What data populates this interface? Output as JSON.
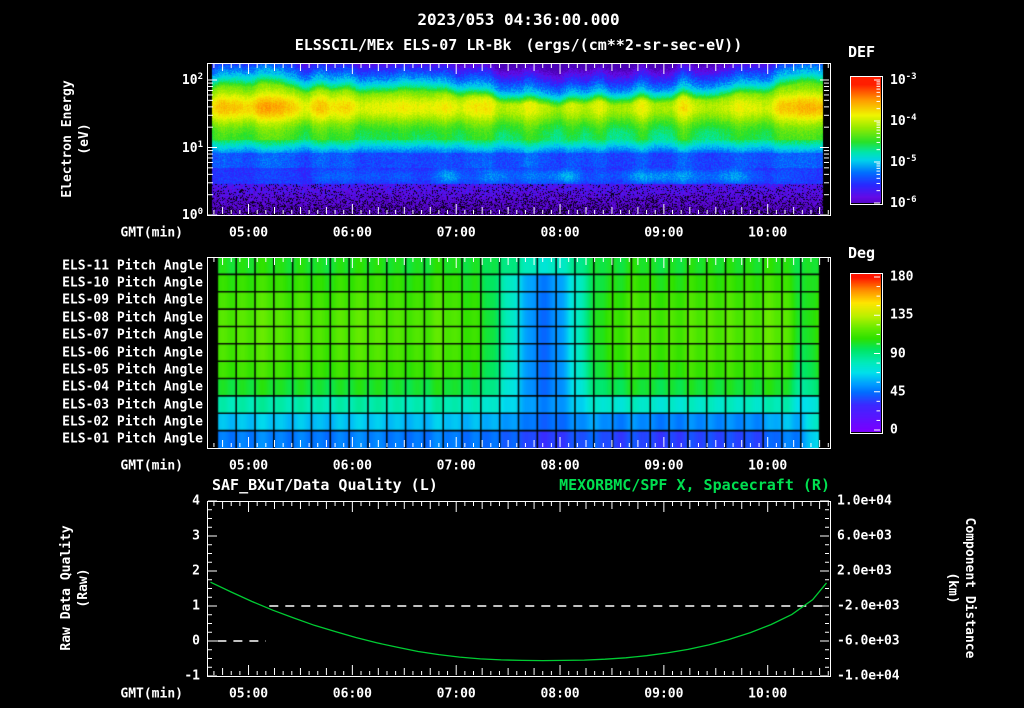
{
  "header": {
    "datetime": "2023/053 04:36:00.000",
    "title": "ELSSCIL/MEx ELS-07 LR-Bk",
    "units": "(ergs/(cm**2-sr-sec-eV))"
  },
  "colors": {
    "background": "#000000",
    "text": "#ffffff",
    "green_text": "#00e050",
    "curve_green": "#00cc33",
    "axis": "#ffffff"
  },
  "xaxis": {
    "label": "GMT(min)",
    "range_min": [
      276,
      636
    ],
    "major_ticks": [
      {
        "label": "05:00",
        "min": 300
      },
      {
        "label": "06:00",
        "min": 360
      },
      {
        "label": "07:00",
        "min": 420
      },
      {
        "label": "08:00",
        "min": 480
      },
      {
        "label": "09:00",
        "min": 540
      },
      {
        "label": "10:00",
        "min": 600
      }
    ]
  },
  "panel_energy": {
    "ylabel": [
      "Electron Energy",
      "(eV)"
    ],
    "yticks_exp": [
      {
        "base": "10",
        "exp": "2",
        "logE": 2
      },
      {
        "base": "10",
        "exp": "1",
        "logE": 1
      },
      {
        "base": "10",
        "exp": "0",
        "logE": 0
      }
    ],
    "colorbar": {
      "title": "DEF",
      "ticks": [
        {
          "base": "10",
          "exp": "-3"
        },
        {
          "base": "10",
          "exp": "-4"
        },
        {
          "base": "10",
          "exp": "-5"
        },
        {
          "base": "10",
          "exp": "-6"
        }
      ]
    }
  },
  "panel_pitch": {
    "colorbar": {
      "title": "Deg",
      "ticks": [
        "180",
        "135",
        "90",
        "45",
        "0"
      ]
    }
  },
  "panel_line": {
    "title_left": "SAF_BXuT/Data Quality (L)",
    "title_right": "MEXORBMC/SPF X, Spacecraft (R)",
    "ylabel_left": [
      "Raw Data Quality",
      "(Raw)"
    ],
    "ylabel_right": [
      "Component Distance",
      "(km)"
    ],
    "yticks_left": [
      "4",
      "3",
      "2",
      "1",
      "0",
      "-1"
    ],
    "yticks_right": [
      "1.0e+04",
      "6.0e+03",
      "2.0e+03",
      "-2.0e+03",
      "-6.0e+03",
      "-1.0e+04"
    ]
  },
  "chart_data": [
    {
      "type": "heatmap",
      "name": "electron-energy-spectrogram",
      "title": "ELSSCIL/MEx ELS-07 LR-Bk",
      "units": "ergs/(cm**2-sr-sec-eV)",
      "xlabel": "GMT(min)",
      "x_range_gmt_min": [
        276,
        636
      ],
      "x_data_range_min": [
        279,
        632
      ],
      "x_ticks": [
        "05:00",
        "06:00",
        "07:00",
        "08:00",
        "09:00",
        "10:00"
      ],
      "ylabel": "Electron Energy (eV)",
      "y_scale": "log",
      "y_range_ev": [
        1,
        178
      ],
      "color_scale": {
        "label": "DEF",
        "log10_range": [
          -6,
          -3
        ]
      },
      "time_samples_min": [
        280,
        300,
        320,
        340,
        360,
        380,
        400,
        420,
        440,
        460,
        480,
        500,
        520,
        540,
        560,
        580,
        600,
        620,
        636
      ],
      "band_intensity": [
        0.92,
        1.0,
        0.95,
        0.88,
        0.8,
        0.85,
        0.9,
        0.8,
        0.72,
        0.58,
        0.6,
        0.68,
        0.7,
        0.72,
        0.7,
        0.72,
        0.76,
        0.95,
        1.0
      ],
      "band_top_logE": [
        2.05,
        2.1,
        2.05,
        2.0,
        2.0,
        2.0,
        2.05,
        1.95,
        1.88,
        1.8,
        1.8,
        1.85,
        1.85,
        1.88,
        1.9,
        1.95,
        2.0,
        2.1,
        2.1
      ],
      "low_energy_patch_intensity": [
        0.05,
        0.15,
        0.05,
        0.35,
        0.5,
        0.25,
        0.35,
        0.55,
        0.4,
        0.6,
        0.7,
        0.6,
        0.55,
        0.6,
        0.45,
        0.55,
        0.25,
        0.1,
        0.05
      ],
      "flux_levels_log10": {
        "band_center_logE": 1.6,
        "band_peak": -3.7,
        "mid_green": -4.58,
        "cyan_edge": -4.95,
        "blue_gap": -5.38,
        "patch_logE": 0.58,
        "low_purple": -5.9,
        "noise_floor": -6.6
      }
    },
    {
      "type": "heatmap",
      "name": "pitch-angle-grid",
      "xlabel": "GMT(min)",
      "x_range_gmt_min": [
        276,
        636
      ],
      "x_data_range_min": [
        282,
        630
      ],
      "color_scale": {
        "label": "Deg",
        "range": [
          0,
          180
        ]
      },
      "grid_cols": 32,
      "rows": [
        {
          "label": "ELS-11 Pitch Angle",
          "base_deg": 104
        },
        {
          "label": "ELS-10 Pitch Angle",
          "base_deg": 109
        },
        {
          "label": "ELS-09 Pitch Angle",
          "base_deg": 113
        },
        {
          "label": "ELS-08 Pitch Angle",
          "base_deg": 116
        },
        {
          "label": "ELS-07 Pitch Angle",
          "base_deg": 116
        },
        {
          "label": "ELS-06 Pitch Angle",
          "base_deg": 114
        },
        {
          "label": "ELS-05 Pitch Angle",
          "base_deg": 111
        },
        {
          "label": "ELS-04 Pitch Angle",
          "base_deg": 102
        },
        {
          "label": "ELS-03 Pitch Angle",
          "base_deg": 82
        },
        {
          "label": "ELS-02 Pitch Angle",
          "base_deg": 62
        },
        {
          "label": "ELS-01 Pitch Angle",
          "base_deg": 48
        }
      ],
      "main_dip": {
        "center_gmt": "07:50",
        "center_min": 470,
        "sigma_min": 25,
        "max_delta_deg": -62,
        "row_weights": [
          0.45,
          0.95,
          1.05,
          1.12,
          1.12,
          1.1,
          1.05,
          0.9,
          0.5,
          0.28,
          0.22
        ]
      },
      "edge_dip": {
        "center_gmt": "10:22",
        "center_min": 622,
        "sigma_min": 7,
        "max_delta_deg": -20,
        "row_weights": [
          0.3,
          0.5,
          0.7,
          0.8,
          0.9,
          1.0,
          1.0,
          1.0,
          0.9,
          0.5,
          0.2
        ]
      },
      "bottom_rows_blue_interval_min": [
        492,
        612
      ],
      "bottom_rows_blue_delta_deg": -11
    },
    {
      "type": "line",
      "name": "quality-and-distance",
      "title_left": "SAF_BXuT/Data Quality (L)",
      "title_right": "MEXORBMC/SPF X, Spacecraft (R)",
      "xlabel": "GMT(min)",
      "x_range_gmt_min": [
        276,
        636
      ],
      "ylim_left": [
        -1,
        4
      ],
      "ylim_right": [
        -10000,
        10000
      ],
      "series": [
        {
          "name": "SAF_BXuT/Data Quality",
          "axis": "left",
          "style": "dashed",
          "color": "#ffffff",
          "segments": [
            {
              "value": 0,
              "from_min": 282,
              "to_min": 310
            },
            {
              "value": 1,
              "from_min": 312,
              "to_min": 634
            }
          ]
        },
        {
          "name": "MEXORBMC/SPF X Spacecraft",
          "axis": "right",
          "style": "solid",
          "color": "#00cc33",
          "points_min_km": [
            [
              278,
              720
            ],
            [
              290,
              -400
            ],
            [
              302,
              -1480
            ],
            [
              314,
              -2480
            ],
            [
              326,
              -3360
            ],
            [
              338,
              -4200
            ],
            [
              350,
              -4920
            ],
            [
              362,
              -5600
            ],
            [
              374,
              -6200
            ],
            [
              386,
              -6720
            ],
            [
              398,
              -7200
            ],
            [
              410,
              -7560
            ],
            [
              422,
              -7840
            ],
            [
              434,
              -8040
            ],
            [
              446,
              -8160
            ],
            [
              458,
              -8220
            ],
            [
              470,
              -8240
            ],
            [
              482,
              -8220
            ],
            [
              494,
              -8180
            ],
            [
              506,
              -8080
            ],
            [
              518,
              -7920
            ],
            [
              530,
              -7680
            ],
            [
              542,
              -7360
            ],
            [
              554,
              -6960
            ],
            [
              566,
              -6440
            ],
            [
              578,
              -5800
            ],
            [
              590,
              -5040
            ],
            [
              602,
              -4120
            ],
            [
              614,
              -2960
            ],
            [
              626,
              -1280
            ],
            [
              634,
              640
            ]
          ]
        }
      ]
    }
  ]
}
